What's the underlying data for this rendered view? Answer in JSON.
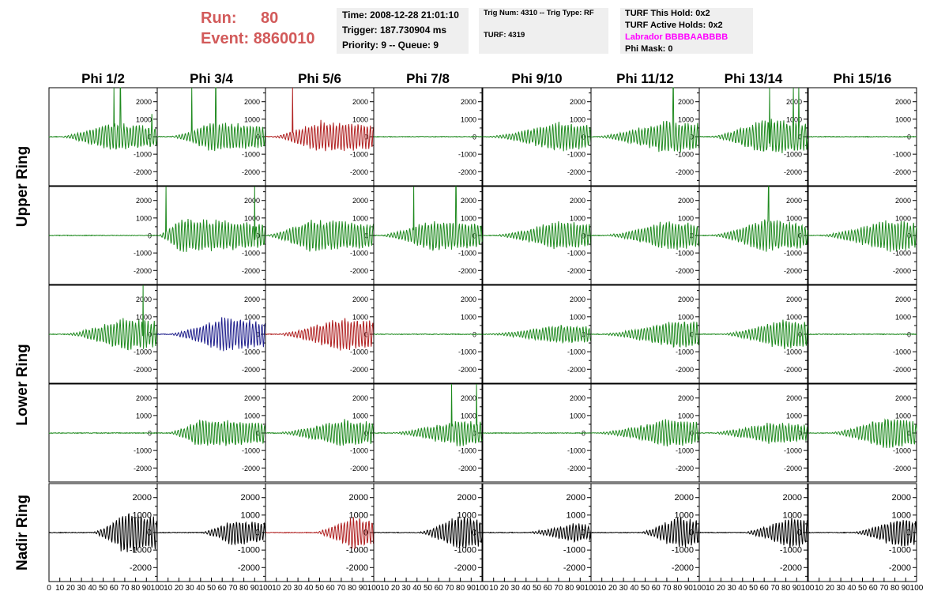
{
  "header": {
    "run_label": "Run:",
    "run_value": "80",
    "event_label": "Event:",
    "event_value": "8860010",
    "time": "Time: 2008-12-28 21:01:10",
    "trigger": "Trigger: 187.730904 ms",
    "priority": "Priority: 9 -- Queue: 9",
    "trig_num": "Trig Num: 4310 -- Trig Type: RF",
    "turf": "TURF: 4319",
    "turf_hold": "TURF This Hold: 0x2",
    "turf_active": "TURF Active Holds: 0x2",
    "labrador": "Labrador BBBBAABBBB",
    "phi_mask": "Phi Mask: 0"
  },
  "colors": {
    "green": "#1f8a1f",
    "red": "#b02020",
    "blue": "#1f1f8c",
    "black": "#000000",
    "title_red": "#d25a5a",
    "labrador_magenta": "#ff00ff"
  },
  "chart_data": {
    "type": "line",
    "columns": [
      "Phi 1/2",
      "Phi 3/4",
      "Phi 5/6",
      "Phi 7/8",
      "Phi 9/10",
      "Phi 11/12",
      "Phi 13/14",
      "Phi 15/16"
    ],
    "rows": [
      "Upper Ring",
      "Upper Ring",
      "Lower Ring",
      "Lower Ring",
      "Nadir Ring"
    ],
    "row_labels": [
      "Upper Ring",
      "Lower Ring",
      "Nadir Ring"
    ],
    "ylim": [
      -2800,
      2800
    ],
    "yticks": [
      "2000",
      "1000",
      "0",
      "-1000",
      "-2000"
    ],
    "xlim": [
      0,
      100
    ],
    "xticks": [
      "0",
      "10",
      "20",
      "30",
      "40",
      "50",
      "60",
      "70",
      "80",
      "90",
      "100"
    ],
    "waveforms": [
      [
        {
          "color": "green",
          "amp": 700,
          "start": 10,
          "peak": 55,
          "spikes": [
            [
              60,
              3200
            ],
            [
              66,
              3200
            ],
            [
              95,
              1300
            ]
          ]
        },
        {
          "color": "green",
          "amp": 750,
          "start": 12,
          "peak": 50,
          "spikes": [
            [
              32,
              3200
            ],
            [
              54,
              3200
            ]
          ]
        },
        {
          "color": "red",
          "amp": 800,
          "start": 5,
          "peak": 50,
          "spikes": [
            [
              25,
              3200
            ]
          ]
        },
        {
          "color": "green",
          "amp": 0,
          "start": 0,
          "peak": 50,
          "spikes": []
        },
        {
          "color": "green",
          "amp": 750,
          "start": 5,
          "peak": 70,
          "spikes": []
        },
        {
          "color": "green",
          "amp": 850,
          "start": 5,
          "peak": 70,
          "spikes": [
            [
              76,
              3200
            ]
          ]
        },
        {
          "color": "green",
          "amp": 900,
          "start": 10,
          "peak": 60,
          "spikes": [
            [
              65,
              3200
            ],
            [
              87,
              3200
            ],
            [
              92,
              3200
            ]
          ]
        },
        {
          "color": "green",
          "amp": 0,
          "start": 0,
          "peak": 50,
          "spikes": []
        }
      ],
      [
        {
          "color": "green",
          "amp": 0,
          "start": 0,
          "peak": 50,
          "spikes": []
        },
        {
          "color": "green",
          "amp": 850,
          "start": 0,
          "peak": 20,
          "spikes": [
            [
              8,
              3200
            ],
            [
              90,
              3200
            ]
          ]
        },
        {
          "color": "green",
          "amp": 800,
          "start": 0,
          "peak": 40,
          "spikes": []
        },
        {
          "color": "green",
          "amp": 800,
          "start": 5,
          "peak": 55,
          "spikes": [
            [
              37,
              3200
            ],
            [
              76,
              3200
            ]
          ]
        },
        {
          "color": "green",
          "amp": 750,
          "start": 10,
          "peak": 70,
          "spikes": []
        },
        {
          "color": "green",
          "amp": 750,
          "start": 12,
          "peak": 70,
          "spikes": []
        },
        {
          "color": "green",
          "amp": 800,
          "start": 10,
          "peak": 60,
          "spikes": [
            [
              64,
              3200
            ]
          ]
        },
        {
          "color": "green",
          "amp": 850,
          "start": 10,
          "peak": 75,
          "spikes": []
        }
      ],
      [
        {
          "color": "green",
          "amp": 850,
          "start": 15,
          "peak": 70,
          "spikes": [
            [
              87,
              3200
            ]
          ]
        },
        {
          "color": "blue",
          "amp": 850,
          "start": 10,
          "peak": 60,
          "spikes": []
        },
        {
          "color": "red",
          "amp": 850,
          "start": 10,
          "peak": 70,
          "spikes": []
        },
        {
          "color": "green",
          "amp": 0,
          "start": 0,
          "peak": 50,
          "spikes": []
        },
        {
          "color": "green",
          "amp": 500,
          "start": 5,
          "peak": 70,
          "spikes": []
        },
        {
          "color": "green",
          "amp": 750,
          "start": 10,
          "peak": 80,
          "spikes": []
        },
        {
          "color": "green",
          "amp": 850,
          "start": 20,
          "peak": 80,
          "spikes": []
        },
        {
          "color": "green",
          "amp": 0,
          "start": 0,
          "peak": 50,
          "spikes": []
        }
      ],
      [
        {
          "color": "green",
          "amp": 0,
          "start": 0,
          "peak": 50,
          "spikes": []
        },
        {
          "color": "green",
          "amp": 700,
          "start": 10,
          "peak": 40,
          "spikes": []
        },
        {
          "color": "green",
          "amp": 700,
          "start": 10,
          "peak": 70,
          "spikes": []
        },
        {
          "color": "green",
          "amp": 700,
          "start": 15,
          "peak": 80,
          "spikes": [
            [
              72,
              3200
            ],
            [
              95,
              3200
            ]
          ]
        },
        {
          "color": "green",
          "amp": 0,
          "start": 0,
          "peak": 50,
          "spikes": []
        },
        {
          "color": "green",
          "amp": 700,
          "start": 5,
          "peak": 70,
          "spikes": []
        },
        {
          "color": "green",
          "amp": 550,
          "start": 10,
          "peak": 65,
          "spikes": []
        },
        {
          "color": "green",
          "amp": 800,
          "start": 20,
          "peak": 70,
          "spikes": []
        }
      ],
      [
        {
          "color": "black",
          "amp": 1050,
          "start": 40,
          "peak": 70,
          "spikes": []
        },
        {
          "color": "black",
          "amp": 650,
          "start": 40,
          "peak": 70,
          "spikes": []
        },
        {
          "color": "red",
          "amp": 850,
          "start": 45,
          "peak": 80,
          "spikes": []
        },
        {
          "color": "black",
          "amp": 900,
          "start": 40,
          "peak": 80,
          "spikes": []
        },
        {
          "color": "black",
          "amp": 500,
          "start": 40,
          "peak": 85,
          "spikes": []
        },
        {
          "color": "black",
          "amp": 850,
          "start": 45,
          "peak": 80,
          "spikes": []
        },
        {
          "color": "black",
          "amp": 800,
          "start": 40,
          "peak": 85,
          "spikes": []
        },
        {
          "color": "black",
          "amp": 800,
          "start": 40,
          "peak": 85,
          "spikes": []
        }
      ]
    ]
  }
}
